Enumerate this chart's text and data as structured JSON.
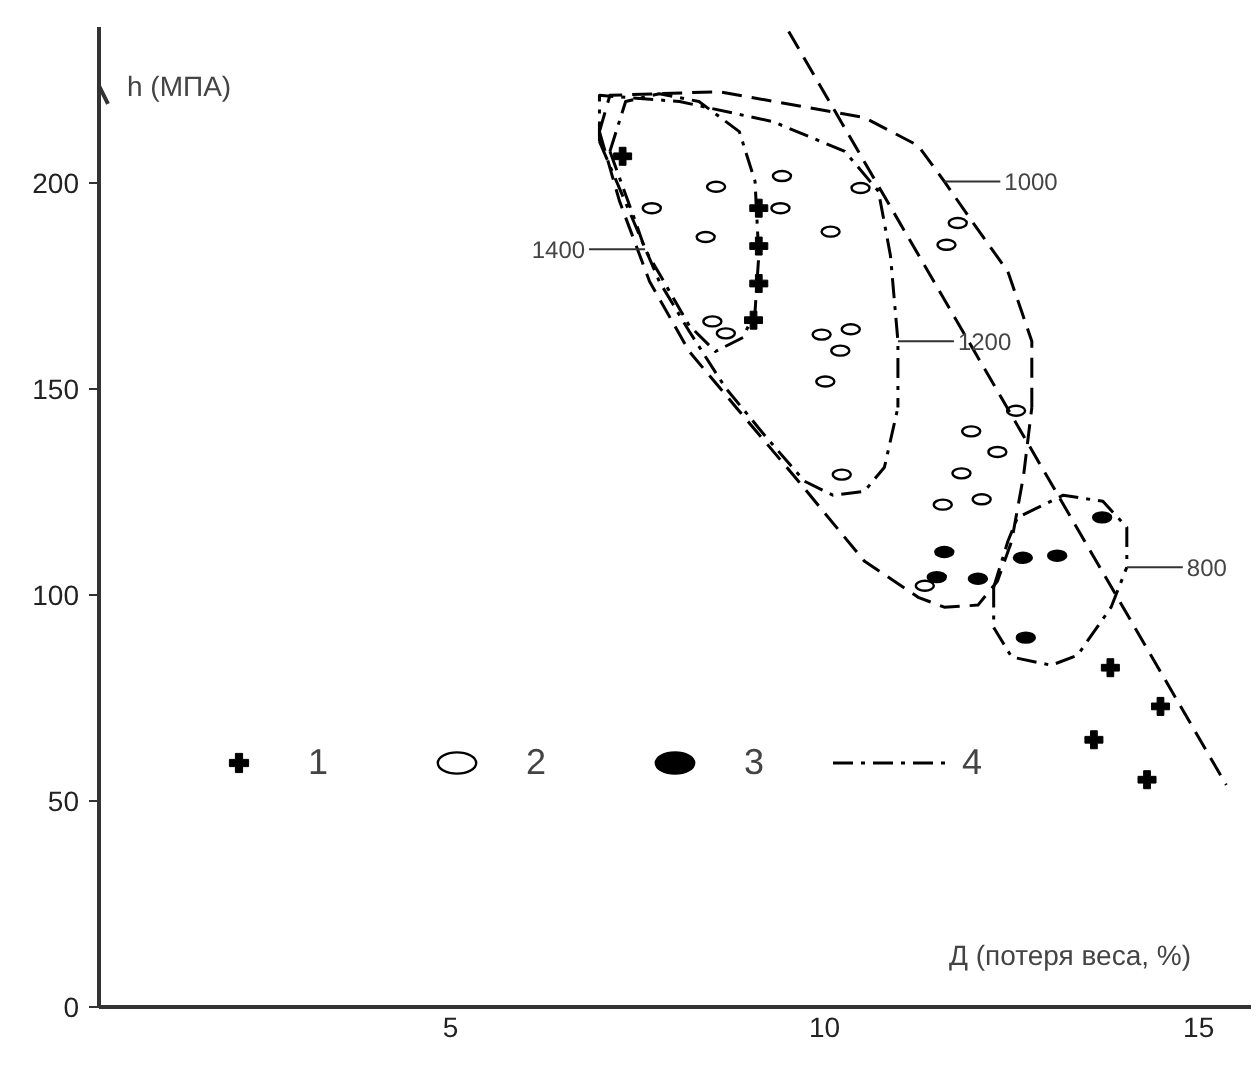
{
  "chart_data": {
    "type": "scatter",
    "xlabel": "Д (потеря веса, %)",
    "ylabel": "h (МПА)",
    "xlim": [
      0.3,
      15.7
    ],
    "ylim": [
      0,
      238
    ],
    "xticks": [
      5,
      10,
      15
    ],
    "yticks": [
      0,
      50,
      100,
      150,
      200
    ],
    "grid": false,
    "legend": "bottom left",
    "series": [
      {
        "name": "1",
        "marker": "cross",
        "color": "#000000",
        "x": [
          7.3,
          9.12,
          9.12,
          9.12,
          9.05,
          13.82,
          14.49,
          13.6,
          14.31
        ],
        "values": [
          206.6,
          194,
          184.8,
          175.7,
          166.8,
          82.4,
          73,
          64.9,
          55.2
        ]
      },
      {
        "name": "2",
        "marker": "circle",
        "color": "#ffffff",
        "x": [
          8.55,
          9.43,
          10.48,
          7.69,
          9.41,
          8.41,
          10.08,
          11.78,
          11.63,
          8.5,
          8.68,
          9.96,
          10.35,
          10.21,
          10.01,
          10.23,
          11.96,
          11.83,
          11.58,
          12.56,
          12.31,
          12.1,
          11.34
        ],
        "values": [
          199.2,
          201.8,
          198.9,
          194,
          194,
          187,
          188.3,
          190.4,
          185.1,
          166.5,
          163.6,
          163.3,
          164.6,
          159.4,
          151.9,
          129.3,
          139.8,
          129.6,
          122,
          144.8,
          134.8,
          123.3,
          102.3
        ]
      },
      {
        "name": "3",
        "marker": "circle",
        "color": "#000000",
        "x": [
          13.71,
          11.6,
          12.65,
          13.11,
          11.5,
          12.05,
          12.69
        ],
        "values": [
          118.9,
          110.5,
          109.1,
          109.6,
          104.4,
          104,
          89.7
        ]
      },
      {
        "type": "line",
        "line_style": "dashed",
        "color": "#000000",
        "x": [
          9.52,
          15.37
        ],
        "values": [
          236.9,
          53.9
        ]
      },
      {
        "type": "line",
        "line_style": "dashdot",
        "color": "#000000",
        "x": [
          7.13,
          7.34,
          7.79,
          8.32,
          8.86,
          9.07,
          9.12,
          null,
          7.13,
          7.47,
          7.6,
          7.85,
          8.19,
          8.54,
          8.91,
          9.07,
          9.12
        ],
        "values": [
          207.8,
          219.9,
          221.8,
          219.9,
          212.6,
          200.5,
          182.5,
          null,
          207.8,
          190.8,
          184,
          176.2,
          165.5,
          159.2,
          162.6,
          168.9,
          182.5
        ]
      },
      {
        "type": "line",
        "line_style": "dashdot",
        "color": "#000000",
        "x": [
          6.99,
          6.99,
          8.06,
          9.31,
          10.27,
          10.72,
          10.88,
          10.98,
          10.98,
          null,
          6.99,
          7.39,
          7.79,
          8.19,
          8.67,
          9.2,
          9.73,
          10.11,
          10.53,
          10.8,
          10.98
        ],
        "values": [
          210.2,
          221.4,
          219.9,
          215,
          207.8,
          198.1,
          182.5,
          161.7,
          145.6,
          null,
          210.2,
          193.2,
          176.2,
          164.1,
          150.5,
          138.8,
          127.7,
          124.3,
          125.2,
          131.1,
          145.6
        ]
      },
      {
        "type": "line",
        "line_style": "dashed",
        "color": "#000000",
        "x": [
          6.99,
          7.13,
          8.59,
          10.53,
          11.25,
          11.6,
          11.97,
          12.45,
          12.77,
          12.77,
          null,
          6.99,
          7.26,
          7.66,
          8.19,
          8.86,
          9.65,
          10.53,
          11.25,
          11.6,
          12.05,
          12.31,
          12.5,
          12.66,
          12.77
        ],
        "values": [
          212.6,
          221.4,
          222.3,
          216,
          209.2,
          200.5,
          190.8,
          178.6,
          161.7,
          145.6,
          null,
          212.6,
          195.6,
          176.2,
          159.2,
          144.7,
          127.7,
          108.3,
          99.5,
          97.1,
          97.6,
          103.4,
          113.1,
          129.1,
          145.6
        ]
      },
      {
        "name": "4",
        "type": "line",
        "line_style": "dashdot",
        "color": "#000000",
        "x": [
          12.26,
          12.45,
          12.58,
          13.19,
          13.72,
          14.04,
          14.04,
          null,
          12.26,
          12.26,
          12.5,
          13.03,
          13.38,
          13.83,
          14.04
        ],
        "values": [
          101.9,
          113.1,
          118.9,
          124.3,
          122.8,
          116.5,
          106.8,
          null,
          101.9,
          92.2,
          85,
          83,
          85.4,
          97.1,
          106.8
        ]
      }
    ],
    "annotations": [
      {
        "text": "1400",
        "x": 7.6,
        "y": 184
      },
      {
        "text": "1200",
        "x": 10.98,
        "y": 161.7
      },
      {
        "text": "1000",
        "x": 11.6,
        "y": 200.5
      },
      {
        "text": "800",
        "x": 14.04,
        "y": 106.8
      }
    ]
  }
}
